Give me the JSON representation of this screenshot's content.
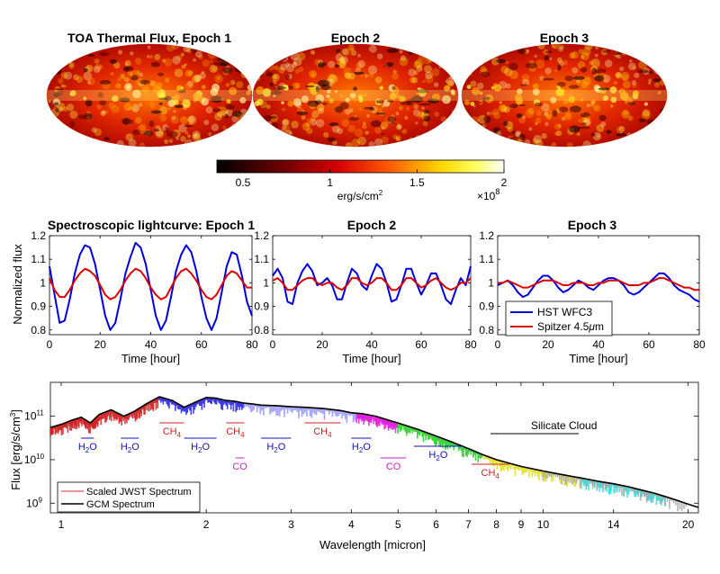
{
  "maps": [
    {
      "title": "TOA Thermal Flux,  Epoch 1"
    },
    {
      "title": "Epoch 2"
    },
    {
      "title": "Epoch 3"
    }
  ],
  "colorbar": {
    "ticks": [
      0.5,
      1,
      1.5,
      2
    ],
    "tick_labels": [
      "0.5",
      "1",
      "1.5",
      "2"
    ],
    "range": [
      0.35,
      2.0
    ],
    "unit": "erg/s/cm",
    "unit_sup": "2",
    "scale_prefix": "×10",
    "scale_exp": "8",
    "colors": [
      "#000000",
      "#6a0000",
      "#d40000",
      "#ff5a00",
      "#ffd700",
      "#ffff60",
      "#ffffff"
    ]
  },
  "lightcurves": [
    {
      "title": "Spectroscopic lightcurve: Epoch 1"
    },
    {
      "title": "Epoch 2"
    },
    {
      "title": "Epoch 3"
    }
  ],
  "lightcurve_axes": {
    "ylabel": "Normalized flux",
    "xlabel": "Time [hour]",
    "xlim": [
      0,
      80
    ],
    "ylim": [
      0.78,
      1.2
    ],
    "xticks": [
      0,
      20,
      40,
      60,
      80
    ],
    "xtick_labels": [
      "0",
      "20",
      "40",
      "60",
      "80"
    ],
    "yticks": [
      0.8,
      0.9,
      1,
      1.1,
      1.2
    ],
    "ytick_labels": [
      "0.8",
      "0.9",
      "1",
      "1.1",
      "1.2"
    ]
  },
  "lightcurve_legend": [
    {
      "label": "HST WFC3",
      "color": "#0000dd"
    },
    {
      "label": "Spitzer 4.5",
      "mu": "μ",
      "unit": "m",
      "color": "#dd0000"
    }
  ],
  "chart_data": [
    {
      "type": "line",
      "title": "Spectroscopic lightcurve: Epoch 1",
      "xlabel": "Time [hour]",
      "ylabel": "Normalized flux",
      "xlim": [
        0,
        80
      ],
      "ylim": [
        0.78,
        1.2
      ],
      "x": [
        0,
        2,
        4,
        6,
        8,
        10,
        12,
        14,
        16,
        18,
        20,
        22,
        24,
        26,
        28,
        30,
        32,
        34,
        36,
        38,
        40,
        42,
        44,
        46,
        48,
        50,
        52,
        54,
        56,
        58,
        60,
        62,
        64,
        66,
        68,
        70,
        72,
        74,
        76,
        78,
        80
      ],
      "series": [
        {
          "name": "HST WFC3",
          "color": "#0000dd",
          "values": [
            1.07,
            0.95,
            0.83,
            0.84,
            0.93,
            1.04,
            1.12,
            1.16,
            1.15,
            1.08,
            0.97,
            0.86,
            0.8,
            0.83,
            0.93,
            1.04,
            1.11,
            1.17,
            1.15,
            1.08,
            0.97,
            0.86,
            0.8,
            0.84,
            0.94,
            1.05,
            1.12,
            1.16,
            1.13,
            1.05,
            0.94,
            0.85,
            0.8,
            0.85,
            0.96,
            1.07,
            1.13,
            1.12,
            1.03,
            0.92,
            0.86
          ]
        },
        {
          "name": "Spitzer 4.5μm",
          "color": "#dd0000",
          "values": [
            1.02,
            0.97,
            0.94,
            0.94,
            0.97,
            1.01,
            1.04,
            1.06,
            1.05,
            1.03,
            0.99,
            0.95,
            0.93,
            0.94,
            0.97,
            1.01,
            1.04,
            1.06,
            1.05,
            1.02,
            0.98,
            0.95,
            0.93,
            0.94,
            0.98,
            1.02,
            1.05,
            1.06,
            1.04,
            1.01,
            0.97,
            0.94,
            0.93,
            0.95,
            0.99,
            1.03,
            1.05,
            1.04,
            1.01,
            0.98,
            0.98
          ]
        }
      ]
    },
    {
      "type": "line",
      "title": "Epoch 2",
      "xlabel": "Time [hour]",
      "xlim": [
        0,
        80
      ],
      "ylim": [
        0.78,
        1.2
      ],
      "x": [
        0,
        2,
        4,
        6,
        8,
        10,
        12,
        14,
        16,
        18,
        20,
        22,
        24,
        26,
        28,
        30,
        32,
        34,
        36,
        38,
        40,
        42,
        44,
        46,
        48,
        50,
        52,
        54,
        56,
        58,
        60,
        62,
        64,
        66,
        68,
        70,
        72,
        74,
        76,
        78,
        80
      ],
      "series": [
        {
          "name": "HST WFC3",
          "color": "#0000dd",
          "values": [
            1.03,
            1.06,
            1.02,
            0.92,
            0.91,
            1.0,
            1.05,
            1.08,
            1.05,
            0.99,
            1.0,
            1.02,
            0.99,
            0.93,
            0.93,
            1.0,
            1.06,
            1.04,
            0.99,
            0.97,
            1.03,
            1.08,
            1.06,
            1.0,
            0.92,
            0.93,
            0.99,
            1.06,
            1.06,
            1.0,
            0.95,
            0.99,
            1.04,
            1.04,
            0.99,
            0.93,
            0.91,
            0.97,
            1.02,
            0.99,
            1.07
          ]
        },
        {
          "name": "Spitzer 4.5μm",
          "color": "#dd0000",
          "values": [
            1.01,
            1.02,
            1.0,
            0.97,
            0.97,
            0.99,
            1.01,
            1.02,
            1.02,
            1.0,
            0.99,
            1.0,
            1.0,
            0.98,
            0.97,
            0.99,
            1.02,
            1.02,
            1.0,
            0.99,
            1.0,
            1.02,
            1.02,
            1.0,
            0.97,
            0.97,
            0.99,
            1.02,
            1.02,
            1.0,
            0.98,
            0.99,
            1.01,
            1.02,
            1.0,
            0.98,
            0.97,
            0.98,
            1.0,
            1.0,
            1.02
          ]
        }
      ]
    },
    {
      "type": "line",
      "title": "Epoch 3",
      "xlabel": "Time [hour]",
      "xlim": [
        0,
        80
      ],
      "ylim": [
        0.78,
        1.2
      ],
      "x": [
        0,
        2,
        4,
        6,
        8,
        10,
        12,
        14,
        16,
        18,
        20,
        22,
        24,
        26,
        28,
        30,
        32,
        34,
        36,
        38,
        40,
        42,
        44,
        46,
        48,
        50,
        52,
        54,
        56,
        58,
        60,
        62,
        64,
        66,
        68,
        70,
        72,
        74,
        76,
        78,
        80
      ],
      "series": [
        {
          "name": "HST WFC3",
          "color": "#0000dd",
          "values": [
            0.99,
            1.0,
            1.01,
            0.99,
            0.96,
            0.94,
            0.95,
            0.98,
            1.01,
            1.03,
            1.03,
            1.01,
            0.98,
            0.96,
            0.97,
            0.99,
            1.01,
            1.0,
            0.98,
            0.97,
            0.99,
            1.01,
            1.02,
            1.02,
            1.01,
            0.99,
            0.96,
            0.95,
            0.96,
            0.98,
            1.0,
            1.02,
            1.04,
            1.04,
            1.02,
            0.99,
            0.97,
            0.96,
            0.95,
            0.93,
            0.92
          ]
        },
        {
          "name": "Spitzer 4.5μm",
          "color": "#dd0000",
          "values": [
            1.0,
            1.0,
            1.01,
            1.0,
            0.99,
            0.98,
            0.98,
            0.99,
            1.0,
            1.01,
            1.01,
            1.01,
            1.0,
            0.99,
            0.99,
            1.0,
            1.0,
            1.0,
            0.99,
            0.99,
            1.0,
            1.0,
            1.01,
            1.01,
            1.01,
            1.0,
            0.99,
            0.99,
            0.99,
            1.0,
            1.0,
            1.01,
            1.02,
            1.02,
            1.01,
            1.0,
            0.99,
            0.98,
            0.98,
            0.97,
            0.97
          ]
        }
      ]
    },
    {
      "type": "line",
      "title": "",
      "xlabel": "Wavelength [micron]",
      "ylabel": "Flux [erg/s/cm^3]",
      "xscale": "log",
      "yscale": "log",
      "xlim": [
        0.95,
        21
      ],
      "ylim": [
        600000000.0,
        600000000000.0
      ],
      "xticks": [
        1,
        2,
        3,
        4,
        5,
        6,
        7,
        8,
        9,
        10,
        14,
        20
      ],
      "xtick_labels": [
        "1",
        "2",
        "3",
        "4",
        "5",
        "6",
        "7",
        "8",
        "9",
        "10",
        "14",
        "20"
      ],
      "yticks": [
        1000000000.0,
        10000000000.0,
        100000000000.0
      ],
      "ytick_labels": [
        "10^9",
        "10^10",
        "10^11"
      ],
      "x": [
        0.95,
        1.0,
        1.05,
        1.1,
        1.15,
        1.2,
        1.27,
        1.35,
        1.42,
        1.5,
        1.6,
        1.7,
        1.8,
        1.9,
        2.0,
        2.1,
        2.2,
        2.3,
        2.4,
        2.5,
        2.6,
        2.8,
        3.0,
        3.2,
        3.5,
        3.8,
        4.0,
        4.2,
        4.5,
        4.8,
        5.0,
        5.5,
        6.0,
        6.5,
        7.0,
        7.5,
        8.0,
        9.0,
        10.0,
        11.0,
        12.0,
        13.0,
        14.0,
        15.0,
        16.0,
        17.0,
        18.0,
        19.0,
        20.0,
        21.0
      ],
      "series": [
        {
          "name": "GCM Spectrum",
          "color": "#000000",
          "values": [
            55000000000.0,
            65000000000.0,
            80000000000.0,
            95000000000.0,
            70000000000.0,
            110000000000.0,
            140000000000.0,
            100000000000.0,
            130000000000.0,
            190000000000.0,
            280000000000.0,
            230000000000.0,
            160000000000.0,
            210000000000.0,
            270000000000.0,
            260000000000.0,
            230000000000.0,
            220000000000.0,
            200000000000.0,
            190000000000.0,
            180000000000.0,
            175000000000.0,
            165000000000.0,
            160000000000.0,
            150000000000.0,
            135000000000.0,
            120000000000.0,
            115000000000.0,
            100000000000.0,
            80000000000.0,
            70000000000.0,
            50000000000.0,
            35000000000.0,
            25000000000.0,
            18000000000.0,
            13000000000.0,
            10000000000.0,
            7000000000.0,
            5500000000.0,
            4500000000.0,
            3800000000.0,
            3200000000.0,
            2800000000.0,
            2400000000.0,
            2000000000.0,
            1700000000.0,
            1400000000.0,
            1150000000.0,
            950000000.0,
            800000000.0
          ]
        },
        {
          "name": "Scaled JWST Spectrum",
          "color": "#e07070",
          "values": [
            54000000000.0,
            64000000000.0,
            79000000000.0,
            94000000000.0,
            69000000000.0,
            109000000000.0,
            138000000000.0,
            99000000000.0,
            129000000000.0,
            188000000000.0,
            277000000000.0,
            228000000000.0,
            158000000000.0,
            208000000000.0,
            267000000000.0,
            257000000000.0,
            228000000000.0,
            218000000000.0,
            198000000000.0,
            188000000000.0,
            178000000000.0,
            173000000000.0,
            163000000000.0,
            158000000000.0,
            148000000000.0,
            133000000000.0,
            119000000000.0,
            114000000000.0,
            99000000000.0,
            79000000000.0,
            69000000000.0,
            49500000000.0,
            34500000000.0,
            24800000000.0,
            17800000000.0,
            12900000000.0,
            9900000000.0,
            6900000000.0,
            5450000000.0,
            4450000000.0,
            3750000000.0,
            3170000000.0,
            2770000000.0,
            2380000000.0,
            1980000000.0,
            1680000000.0,
            1390000000.0,
            1140000000.0,
            940000000.0,
            790000000.0
          ]
        }
      ],
      "bands": [
        {
          "range": [
            0.95,
            1.2
          ],
          "color": "#d02020"
        },
        {
          "range": [
            1.2,
            1.6
          ],
          "color": "#d02020"
        },
        {
          "range": [
            1.6,
            2.4
          ],
          "color": "#2020e0"
        },
        {
          "range": [
            2.4,
            4.1
          ],
          "color": "#9090ff"
        },
        {
          "range": [
            4.1,
            5.0
          ],
          "color": "#e020e0"
        },
        {
          "range": [
            5.0,
            7.5
          ],
          "color": "#20d020"
        },
        {
          "range": [
            7.5,
            12.0
          ],
          "color": "#e0e020"
        },
        {
          "range": [
            12.0,
            18.0
          ],
          "color": "#20e0e0"
        },
        {
          "range": [
            10.0,
            20.0
          ],
          "color": "#a8a8a8"
        }
      ]
    }
  ],
  "spectrum": {
    "ylabel": "Flux [erg/s/cm",
    "ylabel_sup": "3",
    "ylabel_end": "]",
    "xlabel": "Wavelength [micron]",
    "silicate_label": "Silicate Cloud",
    "legend": [
      "Scaled JWST Spectrum",
      "GCM Spectrum"
    ],
    "molecules": [
      {
        "label": "H",
        "sub": "2",
        "end": "O",
        "range": [
          1.1,
          1.17
        ],
        "level": 1,
        "color": "#1010c0"
      },
      {
        "label": "H",
        "sub": "2",
        "end": "O",
        "range": [
          1.33,
          1.45
        ],
        "level": 1,
        "color": "#1010c0"
      },
      {
        "label": "CH",
        "sub": "4",
        "end": "",
        "range": [
          1.6,
          1.8
        ],
        "level": 0,
        "color": "#d02020"
      },
      {
        "label": "H",
        "sub": "2",
        "end": "O",
        "range": [
          1.8,
          2.1
        ],
        "level": 1,
        "color": "#1010c0"
      },
      {
        "label": "CH",
        "sub": "4",
        "end": "",
        "range": [
          2.2,
          2.4
        ],
        "level": 0,
        "color": "#d02020"
      },
      {
        "label": "CO",
        "sub": "",
        "end": "",
        "range": [
          2.3,
          2.4
        ],
        "level": 2,
        "color": "#d020d0"
      },
      {
        "label": "H",
        "sub": "2",
        "end": "O",
        "range": [
          2.6,
          3.0
        ],
        "level": 1,
        "color": "#1010c0"
      },
      {
        "label": "CH",
        "sub": "4",
        "end": "",
        "range": [
          3.2,
          3.8
        ],
        "level": 0,
        "color": "#d02020"
      },
      {
        "label": "H",
        "sub": "2",
        "end": "O",
        "range": [
          4.0,
          4.4
        ],
        "level": 1,
        "color": "#1010c0"
      },
      {
        "label": "CO",
        "sub": "",
        "end": "",
        "range": [
          4.6,
          5.2
        ],
        "level": 2,
        "color": "#d020d0"
      },
      {
        "label": "H",
        "sub": "2",
        "end": "O",
        "range": [
          5.4,
          6.8
        ],
        "level": 1.4,
        "color": "#1010c0"
      },
      {
        "label": "CH",
        "sub": "4",
        "end": "",
        "range": [
          7.1,
          8.5
        ],
        "level": 2.6,
        "color": "#d02020"
      }
    ]
  }
}
